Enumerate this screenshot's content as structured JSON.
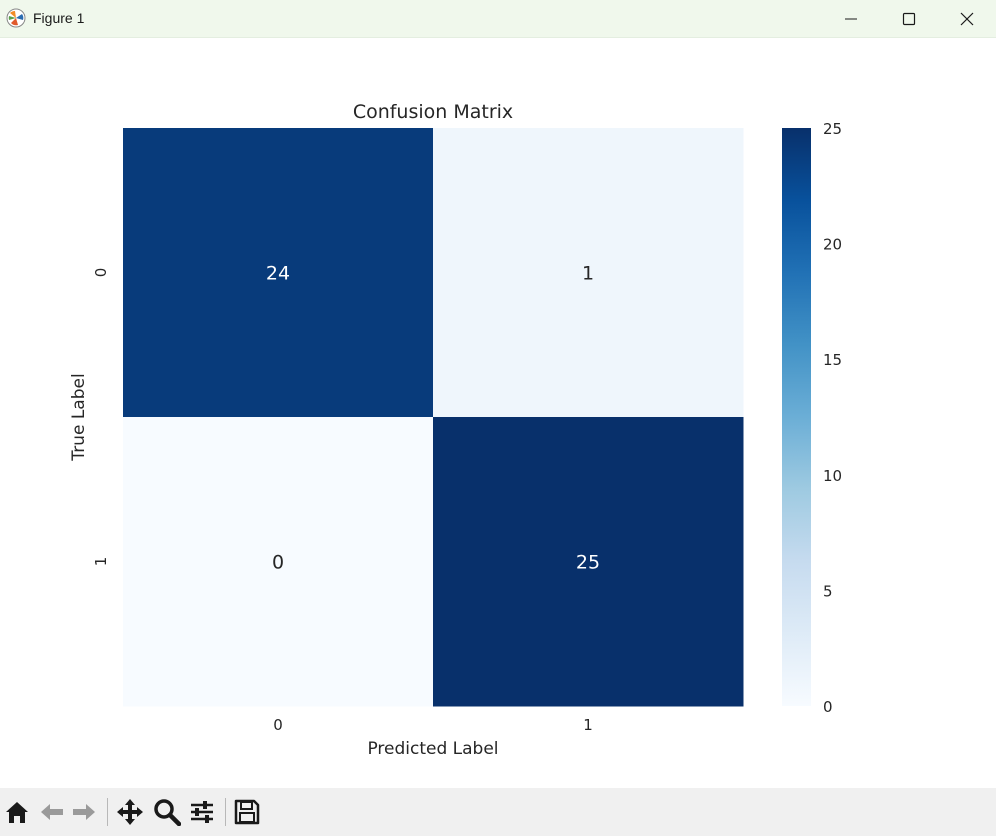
{
  "window": {
    "title": "Figure 1",
    "app_icon": "matplotlib-icon",
    "controls": [
      "minimize-icon",
      "maximize-icon",
      "close-icon"
    ]
  },
  "chart_data": {
    "type": "heatmap",
    "title": "Confusion Matrix",
    "xlabel": "Predicted Label",
    "ylabel": "True Label",
    "x_categories": [
      "0",
      "1"
    ],
    "y_categories": [
      "0",
      "1"
    ],
    "values": [
      [
        24,
        1
      ],
      [
        0,
        25
      ]
    ],
    "annotations": true,
    "colormap": "Blues",
    "colorbar": {
      "min": 0,
      "max": 25,
      "ticks": [
        0,
        5,
        10,
        15,
        20,
        25
      ],
      "tick_labels": [
        "0",
        "5",
        "10",
        "15",
        "20",
        "25"
      ]
    },
    "colors": {
      "low": "#f7fbff",
      "high": "#08306b",
      "annotation_on_dark": "#ffffff",
      "annotation_on_light": "#262626"
    }
  },
  "toolbar": {
    "icons": [
      "home-icon",
      "back-icon",
      "forward-icon",
      "pan-icon",
      "zoom-icon",
      "configure-subplots-icon",
      "save-icon"
    ]
  }
}
